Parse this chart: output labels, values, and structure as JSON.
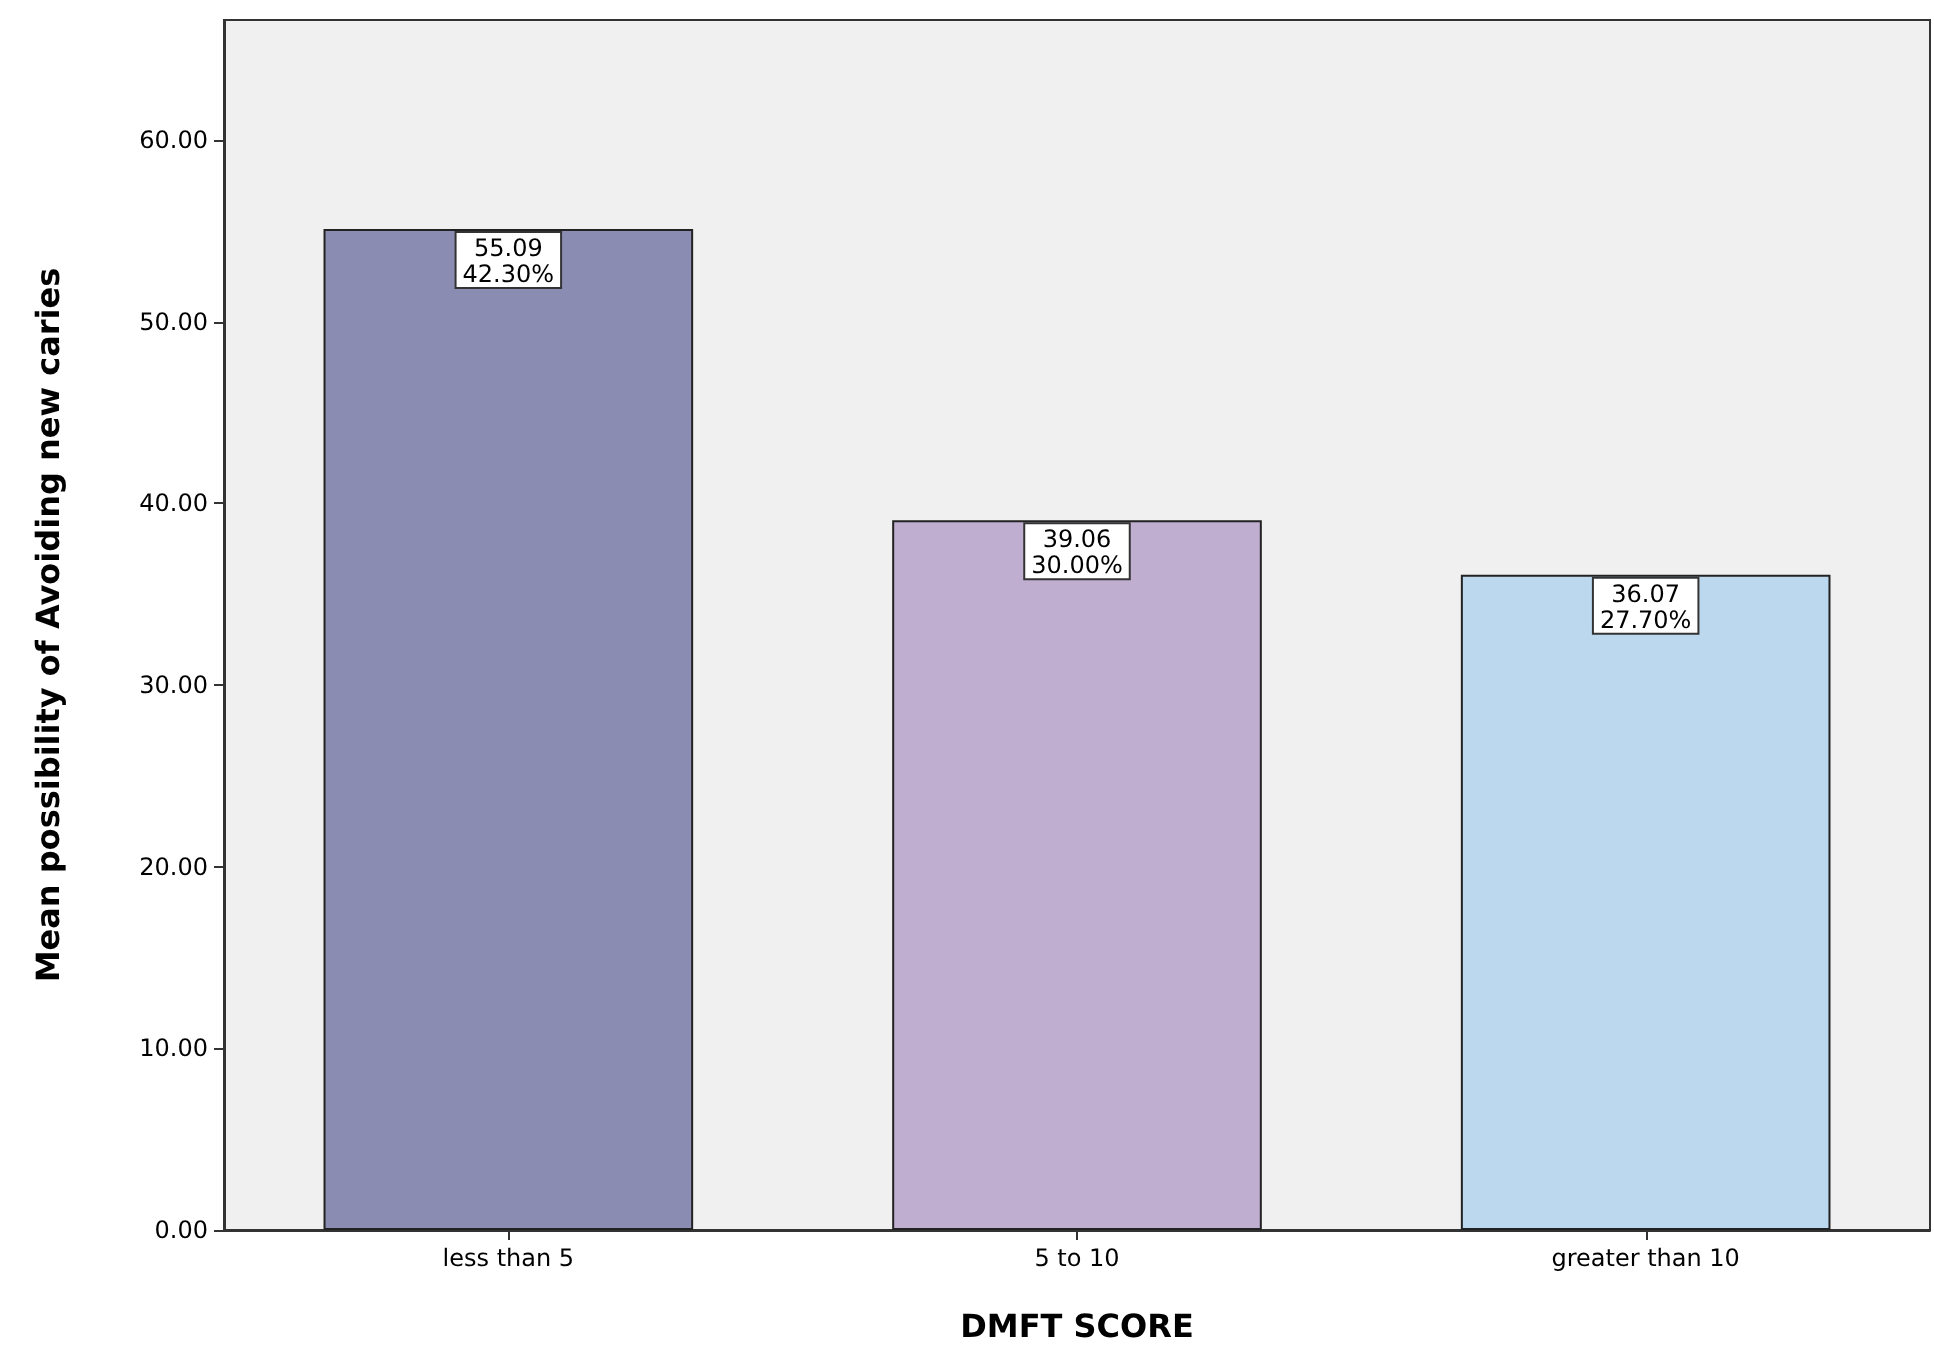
{
  "chart_data": {
    "type": "bar",
    "xlabel": "DMFT SCORE",
    "ylabel": "Mean possibility of Avoiding new caries",
    "categories": [
      "less than 5",
      "5 to 10",
      "greater than 10"
    ],
    "values": [
      55.09,
      39.06,
      36.07
    ],
    "colors": [
      "#8a8cb2",
      "#c0aed1",
      "#bcd8ee"
    ],
    "value_labels": [
      "55.09\n42.30%",
      "39.06\n30.00%",
      "36.07\n27.70%"
    ],
    "ylim": [
      0,
      66.6
    ],
    "yticks": [
      {
        "value": 0,
        "label": "0.00"
      },
      {
        "value": 10,
        "label": "10.00"
      },
      {
        "value": 20,
        "label": "20.00"
      },
      {
        "value": 30,
        "label": "30.00"
      },
      {
        "value": 40,
        "label": "40.00"
      },
      {
        "value": 50,
        "label": "50.00"
      },
      {
        "value": 60,
        "label": "60.00"
      }
    ],
    "grid": false
  }
}
